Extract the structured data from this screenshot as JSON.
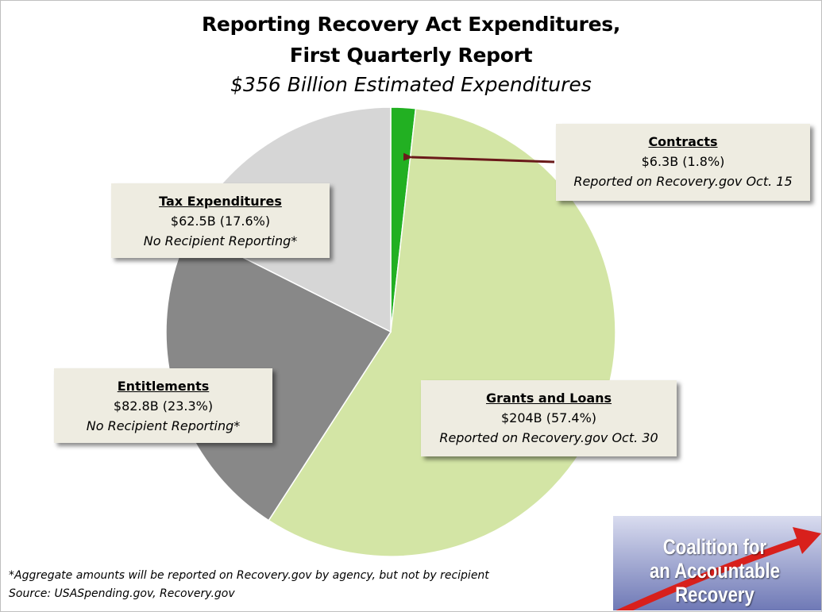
{
  "title_line1": "Reporting Recovery Act Expenditures,",
  "title_line2": "First Quarterly Report",
  "subtitle": "$356 Billion Estimated Expenditures",
  "chart_data": {
    "type": "pie",
    "categories": [
      "Contracts",
      "Grants and Loans",
      "Entitlements",
      "Tax Expenditures"
    ],
    "values": [
      6.3,
      204,
      82.8,
      62.5
    ],
    "percentages": [
      1.8,
      57.4,
      23.3,
      17.6
    ],
    "colors": [
      "#22b022",
      "#d3e5a5",
      "#888888",
      "#d6d6d6"
    ],
    "labels": [
      {
        "category": "Contracts",
        "value": "$6.3B (1.8%)",
        "note": "Reported on Recovery.gov  Oct. 15"
      },
      {
        "category": "Grants and Loans",
        "value": "$204B (57.4%)",
        "note": "Reported on Recovery.gov  Oct. 30"
      },
      {
        "category": "Entitlements",
        "value": "$82.8B (23.3%)",
        "note": "No Recipient Reporting*"
      },
      {
        "category": "Tax Expenditures",
        "value": "$62.5B (17.6%)",
        "note": "No Recipient Reporting*"
      }
    ],
    "start_angle": "top",
    "direction": "clockwise",
    "arrow_color": "#6a1a1a"
  },
  "footnote1": "*Aggregate amounts will be reported on Recovery.gov by agency, but not by recipient",
  "footnote2": "Source: USASpending.gov, Recovery.gov",
  "logo": {
    "line1": "Coalition for",
    "line2": "an Accountable",
    "line3": "Recovery",
    "arrow_color": "#d8201c"
  }
}
